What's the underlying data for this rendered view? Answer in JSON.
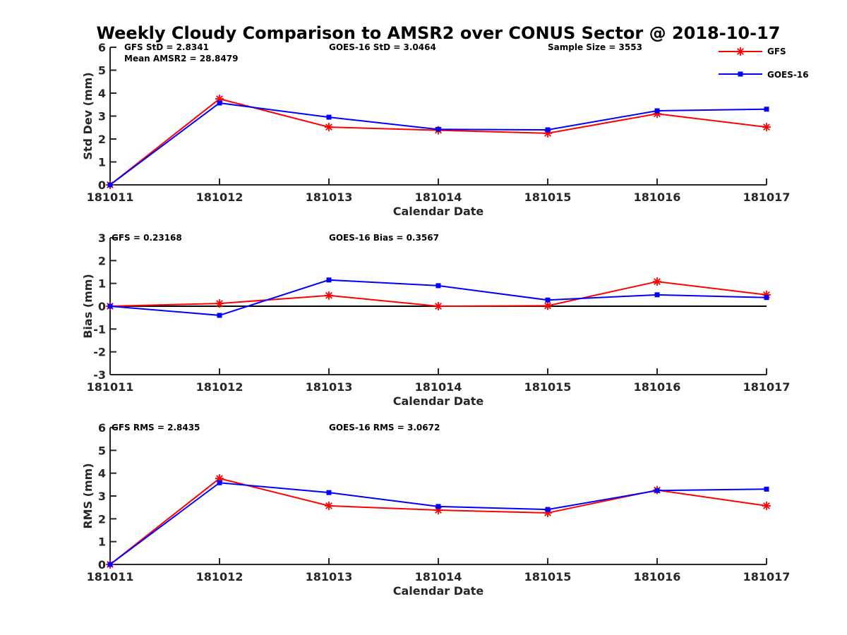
{
  "chart_data": {
    "title": "Weekly Cloudy Comparison to AMSR2 over CONUS Sector @ 2018-10-17",
    "legend": {
      "placement": "top-right",
      "entries": [
        {
          "name": "GFS",
          "color": "#ff0000",
          "marker": "asterisk"
        },
        {
          "name": "GOES-16",
          "color": "#0000ff",
          "marker": "square"
        }
      ]
    },
    "panels": [
      {
        "id": "std",
        "type": "line",
        "xlabel": "Calendar Date",
        "ylabel": "Std Dev (mm)",
        "categories": [
          "181011",
          "181012",
          "181013",
          "181014",
          "181015",
          "181016",
          "181017"
        ],
        "ylim": [
          0,
          6
        ],
        "yticks": [
          0,
          1,
          2,
          3,
          4,
          5,
          6
        ],
        "zero_line": false,
        "annotations": {
          "left": [
            "GFS StD = 2.8341",
            "Mean AMSR2 = 28.8479"
          ],
          "middle": "GOES-16 StD = 3.0464",
          "right": "Sample Size = 3553"
        },
        "series": [
          {
            "name": "GFS",
            "values": [
              0,
              3.75,
              2.52,
              2.38,
              2.25,
              3.1,
              2.52
            ]
          },
          {
            "name": "GOES-16",
            "values": [
              0,
              3.57,
              2.95,
              2.42,
              2.4,
              3.23,
              3.3
            ]
          }
        ]
      },
      {
        "id": "bias",
        "type": "line",
        "xlabel": "Calendar Date",
        "ylabel": "Bias (mm)",
        "categories": [
          "181011",
          "181012",
          "181013",
          "181014",
          "181015",
          "181016",
          "181017"
        ],
        "ylim": [
          -3,
          3
        ],
        "yticks": [
          -3,
          -2,
          -1,
          0,
          1,
          2,
          3
        ],
        "zero_line": true,
        "annotations": {
          "left": [
            "GFS = 0.23168"
          ],
          "middle": "GOES-16 Bias  = 0.3567",
          "right": ""
        },
        "series": [
          {
            "name": "GFS",
            "values": [
              0,
              0.12,
              0.47,
              0.0,
              0.02,
              1.08,
              0.5
            ]
          },
          {
            "name": "GOES-16",
            "values": [
              0,
              -0.4,
              1.15,
              0.9,
              0.27,
              0.5,
              0.38
            ]
          }
        ]
      },
      {
        "id": "rms",
        "type": "line",
        "xlabel": "Calendar Date",
        "ylabel": "RMS (mm)",
        "categories": [
          "181011",
          "181012",
          "181013",
          "181014",
          "181015",
          "181016",
          "181017"
        ],
        "ylim": [
          0,
          6
        ],
        "yticks": [
          0,
          1,
          2,
          3,
          4,
          5,
          6
        ],
        "zero_line": false,
        "annotations": {
          "left": [
            "GFS RMS = 2.8435"
          ],
          "middle": "GOES-16 RMS = 3.0672",
          "right": ""
        },
        "series": [
          {
            "name": "GFS",
            "values": [
              0,
              3.77,
              2.57,
              2.38,
              2.26,
              3.26,
              2.57
            ]
          },
          {
            "name": "GOES-16",
            "values": [
              0,
              3.58,
              3.15,
              2.54,
              2.41,
              3.24,
              3.3
            ]
          }
        ]
      }
    ]
  }
}
